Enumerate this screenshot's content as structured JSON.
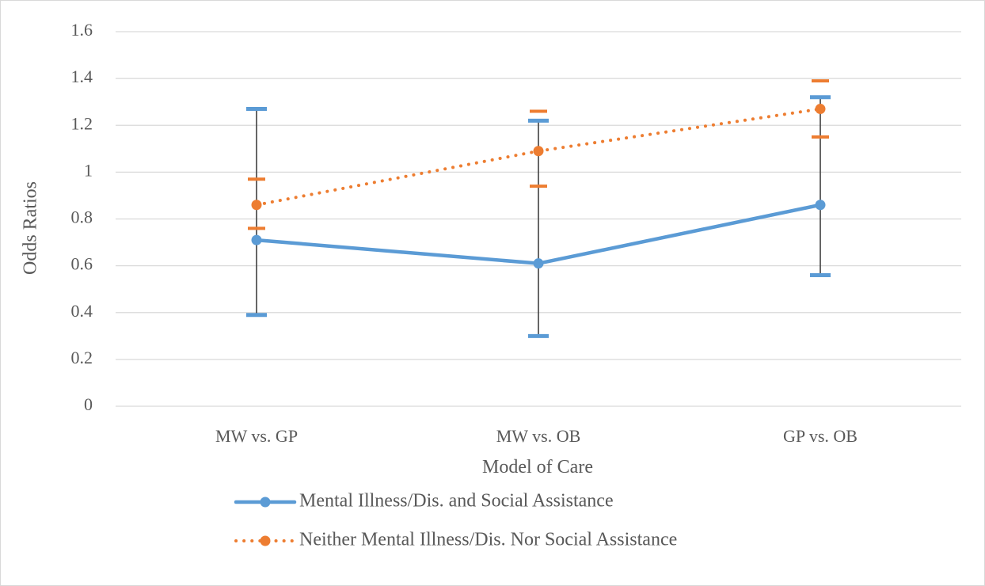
{
  "chart_data": {
    "type": "line",
    "title": "",
    "xlabel": "Model of Care",
    "ylabel": "Odds Ratios",
    "categories": [
      "MW vs. GP",
      "MW vs. OB",
      "GP vs. OB"
    ],
    "ylim": [
      0,
      1.6
    ],
    "yticks": [
      "0",
      "0.2",
      "0.4",
      "0.6",
      "0.8",
      "1",
      "1.2",
      "1.4",
      "1.6"
    ],
    "grid": "horizontal",
    "legend_position": "bottom",
    "series": [
      {
        "name": "Mental Illness/Dis. and Social Assistance",
        "values": [
          0.71,
          0.61,
          0.86
        ],
        "ci_low": [
          0.39,
          0.3,
          0.56
        ],
        "ci_high": [
          1.27,
          1.22,
          1.32
        ],
        "color": "#5b9bd5",
        "line_style": "solid"
      },
      {
        "name": "Neither Mental Illness/Dis. Nor Social Assistance",
        "values": [
          0.86,
          1.09,
          1.27
        ],
        "ci_low": [
          0.76,
          0.94,
          1.15
        ],
        "ci_high": [
          0.97,
          1.26,
          1.39
        ],
        "color": "#ed7d31",
        "line_style": "dotted"
      }
    ]
  }
}
